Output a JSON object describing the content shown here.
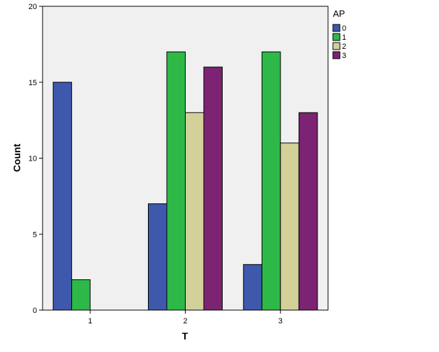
{
  "chart_data": {
    "type": "bar",
    "xlabel": "T",
    "ylabel": "Count",
    "ylim": [
      0,
      20
    ],
    "yticks": [
      "0",
      "5",
      "10",
      "15",
      "20"
    ],
    "categories": [
      "1",
      "2",
      "3"
    ],
    "legend_title": "AP",
    "legend_position": "top-right",
    "grid": false,
    "series": [
      {
        "name": "0",
        "color": "#3e58ac",
        "values": [
          15,
          7,
          3
        ]
      },
      {
        "name": "1",
        "color": "#2eb848",
        "values": [
          2,
          17,
          17
        ]
      },
      {
        "name": "2",
        "color": "#d4d09a",
        "values": [
          0,
          13,
          11
        ]
      },
      {
        "name": "3",
        "color": "#7d2373",
        "values": [
          0,
          16,
          13
        ]
      }
    ]
  }
}
